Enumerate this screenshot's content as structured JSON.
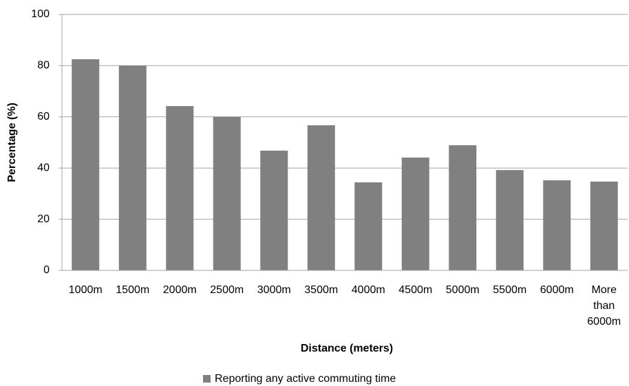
{
  "chart_data": {
    "type": "bar",
    "categories": [
      "1000m",
      "1500m",
      "2000m",
      "2500m",
      "3000m",
      "3500m",
      "4000m",
      "4500m",
      "5000m",
      "5500m",
      "6000m",
      "More than 6000m"
    ],
    "series": [
      {
        "name": "Reporting any active commuting time",
        "color": "#808080",
        "values": [
          82.5,
          80,
          64.2,
          60,
          46.8,
          56.7,
          34.4,
          44.1,
          48.9,
          39.2,
          35.2,
          34.7
        ]
      }
    ],
    "xlabel": "Distance (meters)",
    "ylabel": "Percentage (%)",
    "ylim": [
      0,
      100
    ],
    "yticks": [
      0,
      20,
      40,
      60,
      80,
      100
    ],
    "grid": true,
    "legend": "bottom"
  }
}
